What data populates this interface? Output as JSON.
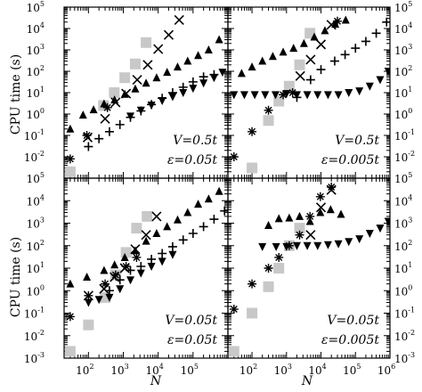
{
  "chart_data": {
    "type": "scatter",
    "layout": "2x2 panels, shared log axes",
    "xlabel": "N",
    "ylabel": "CPU time (s)",
    "xscale": "log",
    "yscale": "log",
    "xlim": [
      20,
      1000000
    ],
    "ylim": [
      0.001,
      100000
    ],
    "x_ticks": [
      "10^2",
      "10^3",
      "10^4",
      "10^5",
      "10^6"
    ],
    "y_ticks": [
      "10^-3",
      "10^-2",
      "10^-1",
      "10^0",
      "10^1",
      "10^2",
      "10^3",
      "10^4",
      "10^5"
    ],
    "markers": {
      "s1": {
        "shape": "square",
        "color": "#c8c8c8"
      },
      "s2": {
        "shape": "cross",
        "color": "#000000"
      },
      "s3": {
        "shape": "triangle-up",
        "color": "#000000"
      },
      "s4": {
        "shape": "plus",
        "color": "#000000"
      },
      "s5": {
        "shape": "triangle-down",
        "color": "#000000"
      },
      "s6": {
        "shape": "asterisk",
        "color": "#000000"
      }
    },
    "panels": [
      {
        "position": "top-left",
        "annotation": [
          "V=0.5t",
          "ε=0.05t"
        ],
        "series": [
          {
            "marker": "s1",
            "x": [
              30,
              270,
              550,
              1100,
              2200,
              4500
            ],
            "y": [
              0.002,
              2.5,
              10,
              50,
              220,
              2200
            ]
          },
          {
            "marker": "s2",
            "x": [
              95,
              300,
              600,
              1200,
              2500,
              5000,
              10000,
              20000,
              40000
            ],
            "y": [
              0.08,
              0.6,
              3.5,
              9,
              40,
              200,
              1100,
              5000,
              25000
            ]
          },
          {
            "marker": "s3",
            "x": [
              30,
              70,
              140,
              280,
              560,
              1100,
              2200,
              4500,
              9000,
              18000,
              36000,
              70000,
              140000,
              280000,
              560000
            ],
            "y": [
              0.2,
              0.9,
              1.6,
              3,
              4.6,
              8.5,
              15,
              28,
              50,
              90,
              160,
              300,
              550,
              1000,
              3000
            ]
          },
          {
            "marker": "s4",
            "x": [
              100,
              200,
              400,
              800,
              1600,
              3200,
              6400,
              13000,
              26000,
              52000,
              100000,
              200000,
              400000
            ],
            "y": [
              0.03,
              0.07,
              0.15,
              0.32,
              0.7,
              1.4,
              2.8,
              5.5,
              10,
              18,
              32,
              55,
              70
            ]
          },
          {
            "marker": "s5",
            "x": [
              1600,
              3200,
              6400,
              13000,
              26000,
              52000,
              100000,
              200000,
              400000,
              700000
            ],
            "y": [
              0.8,
              1.5,
              2.6,
              4.2,
              6.5,
              10,
              16,
              28,
              50,
              90
            ]
          },
          {
            "marker": "s6",
            "x": [
              30,
              90,
              350
            ],
            "y": [
              0.008,
              0.1,
              2
            ]
          }
        ]
      },
      {
        "position": "top-right",
        "annotation": [
          "V=0.5t",
          "ε=0.005t"
        ],
        "series": [
          {
            "marker": "s1",
            "x": [
              100,
              300,
              600,
              1200,
              2400,
              4800
            ],
            "y": [
              0.003,
              0.5,
              4,
              20,
              200,
              6000
            ]
          },
          {
            "marker": "s2",
            "x": [
              2500,
              5000,
              10000,
              20000
            ],
            "y": [
              60,
              350,
              1800,
              15000
            ]
          },
          {
            "marker": "s3",
            "x": [
              50,
              100,
              200,
              400,
              800,
              1600,
              3200,
              6400,
              13000,
              26000,
              52000
            ],
            "y": [
              80,
              160,
              300,
              500,
              800,
              1200,
              2000,
              4000,
              8000,
              16000,
              25000
            ]
          },
          {
            "marker": "s4",
            "x": [
              2000,
              5000,
              10000,
              25000,
              50000,
              100000,
              200000,
              400000,
              800000
            ],
            "y": [
              6,
              40,
              120,
              300,
              600,
              1200,
              2500,
              6000,
              20000
            ]
          },
          {
            "marker": "s5",
            "x": [
              30,
              60,
              120,
              240,
              480,
              1000,
              2000,
              4000,
              8000,
              16000,
              32000,
              64000,
              130000,
              260000,
              520000,
              900000
            ],
            "y": [
              8,
              8,
              8,
              8,
              8,
              9,
              8,
              8,
              8,
              8,
              8,
              10,
              12,
              20,
              40,
              100
            ]
          },
          {
            "marker": "s6",
            "x": [
              30,
              100,
              300,
              800,
              1500,
              30000
            ],
            "y": [
              0.01,
              0.15,
              1.5,
              8,
              10,
              22000
            ]
          }
        ]
      },
      {
        "position": "bottom-left",
        "annotation": [
          "V=0.05t",
          "ε=0.05t"
        ],
        "series": [
          {
            "marker": "s1",
            "x": [
              30,
              100,
              300,
              600,
              1200,
              2400,
              4800
            ],
            "y": [
              0.002,
              0.03,
              0.5,
              5,
              50,
              600,
              2000
            ]
          },
          {
            "marker": "s2",
            "x": [
              100,
              280,
              560,
              1100,
              2200,
              4500,
              9000
            ],
            "y": [
              0.6,
              1.2,
              4,
              10,
              70,
              300,
              2000
            ]
          },
          {
            "marker": "s3",
            "x": [
              30,
              90,
              280,
              560,
              1100,
              2200,
              4500,
              9000,
              18000,
              36000,
              70000,
              140000,
              280000,
              560000
            ],
            "y": [
              2,
              4,
              8,
              14,
              30,
              60,
              160,
              350,
              700,
              1400,
              3000,
              7000,
              12000,
              26000
            ]
          },
          {
            "marker": "s4",
            "x": [
              400,
              800,
              1600,
              3200,
              6400,
              13000,
              26000,
              52000,
              100000,
              200000,
              400000,
              800000
            ],
            "y": [
              1,
              3,
              8,
              12,
              25,
              45,
              90,
              180,
              350,
              700,
              1500,
              3500
            ]
          },
          {
            "marker": "s5",
            "x": [
              100,
              200,
              400,
              800,
              1600,
              3200,
              6400,
              13000,
              26000
            ],
            "y": [
              0.3,
              0.4,
              0.5,
              1.2,
              3,
              6,
              12,
              20,
              40
            ]
          },
          {
            "marker": "s6",
            "x": [
              30,
              100,
              300,
              600,
              1200,
              2400
            ],
            "y": [
              0.07,
              0.6,
              2,
              5,
              12,
              30
            ]
          }
        ]
      },
      {
        "position": "bottom-right",
        "annotation": [
          "V=0.05t",
          "ε=0.005t"
        ],
        "series": [
          {
            "marker": "s1",
            "x": [
              30,
              100,
              300,
              600,
              1200,
              2400
            ],
            "y": [
              0.002,
              0.1,
              1.5,
              10,
              100,
              600
            ]
          },
          {
            "marker": "s2",
            "x": [
              5000,
              10000,
              20000
            ],
            "y": [
              300,
              5000,
              30000
            ]
          },
          {
            "marker": "s3",
            "x": [
              300,
              600,
              1200,
              2400,
              4800,
              9600,
              19000,
              38000
            ],
            "y": [
              800,
              1600,
              1700,
              2000,
              1200,
              3000,
              4000,
              2500
            ]
          },
          {
            "marker": "s5",
            "x": [
              200,
              500,
              1000,
              2000,
              4000,
              8000,
              16000,
              32000,
              64000,
              130000,
              260000,
              520000,
              900000
            ],
            "y": [
              90,
              90,
              90,
              100,
              100,
              100,
              110,
              120,
              150,
              200,
              350,
              600,
              1200
            ]
          },
          {
            "marker": "s6",
            "x": [
              30,
              100,
              300,
              600,
              1200,
              2400,
              4800,
              9600,
              20000
            ],
            "y": [
              0.15,
              2,
              10,
              30,
              100,
              300,
              2000,
              15000,
              40000
            ]
          }
        ]
      }
    ]
  }
}
